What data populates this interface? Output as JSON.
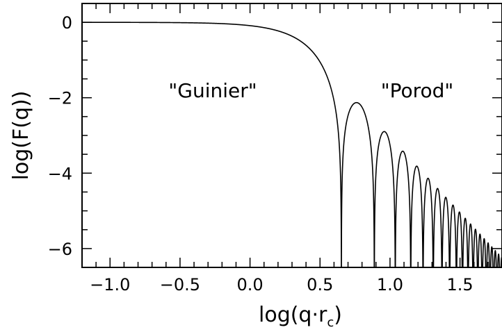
{
  "chart_data": {
    "type": "line",
    "xlabel": "log(q·r",
    "xlabel_subscript": "c",
    "xlabel_close": ")",
    "ylabel": "log(F(q))",
    "xlim": [
      -1.2,
      1.8
    ],
    "ylim": [
      -6.5,
      0.5
    ],
    "x_ticks": [
      -1.0,
      -0.5,
      0.0,
      0.5,
      1.0,
      1.5
    ],
    "x_tick_labels": [
      "−1.0",
      "−0.5",
      "0.0",
      "0.5",
      "1.0",
      "1.5"
    ],
    "y_ticks": [
      0,
      -2,
      -4,
      -6
    ],
    "y_tick_labels": [
      "0",
      "−2",
      "−4",
      "−6"
    ],
    "grid": false,
    "annotations": [
      {
        "text": "\"Guinier\"",
        "x": -0.1,
        "y": -2.0
      },
      {
        "text": "\"Porod\"",
        "x": 1.1,
        "y": -2.0
      }
    ],
    "series": [
      {
        "function": "log10 of sphere form factor squared: [3(sin u − u cos u)/u^3]^2, u = 10^x",
        "points": [
          [
            -1.2,
            0.0
          ],
          [
            -1.0,
            -0.0009
          ],
          [
            -0.5,
            -0.0087
          ],
          [
            0.0,
            -0.087
          ],
          [
            0.3,
            -0.37
          ],
          [
            0.5,
            -1.2
          ],
          [
            0.6,
            -2.5
          ],
          [
            0.655,
            -6.5
          ],
          [
            0.75,
            -2.15
          ],
          [
            0.88,
            -6.5
          ],
          [
            0.95,
            -2.9
          ],
          [
            1.05,
            -6.5
          ],
          [
            1.09,
            -3.45
          ],
          [
            1.15,
            -6.5
          ],
          [
            1.19,
            -3.85
          ],
          [
            1.5,
            -5.2
          ],
          [
            1.8,
            -6.2
          ]
        ]
      }
    ]
  }
}
